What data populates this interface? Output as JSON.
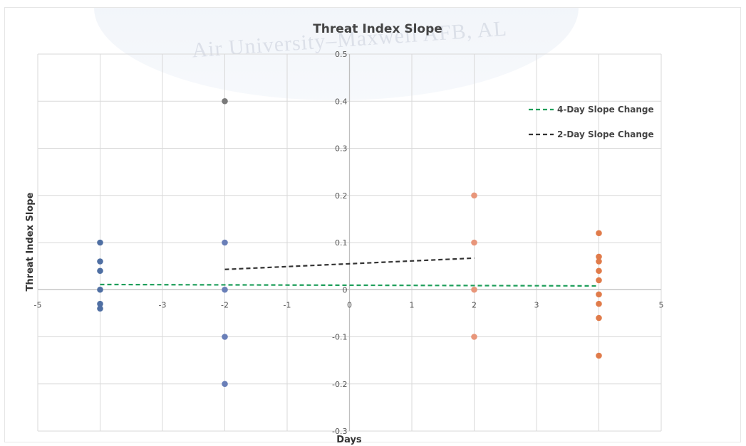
{
  "chart_data": {
    "type": "scatter",
    "title": "Threat Index Slope",
    "xlabel": "Days",
    "ylabel": "Threat Index Slope",
    "xlim": [
      -5,
      5
    ],
    "ylim": [
      -0.3,
      0.5
    ],
    "x_ticks": [
      -5,
      -4,
      -3,
      -2,
      -1,
      0,
      1,
      2,
      3,
      4,
      5
    ],
    "y_ticks": [
      -0.3,
      -0.2,
      -0.1,
      0,
      0.1,
      0.2,
      0.3,
      0.4,
      0.5
    ],
    "x_tick_labels": [
      "-5",
      "",
      "-3",
      "-2",
      "-1",
      "0",
      "1",
      "2",
      "3",
      "",
      "5"
    ],
    "y_tick_labels": [
      "-0.3",
      "-0.2",
      "-0.1",
      "0",
      "0.1",
      "0.2",
      "0.3",
      "0.4",
      "0.5"
    ],
    "grid": true,
    "legend_position": "top-right",
    "series": [
      {
        "color": "#4f6fa3",
        "points": [
          [
            -4,
            0.1
          ],
          [
            -4,
            0.06
          ],
          [
            -4,
            0.04
          ],
          [
            -4,
            0.0
          ],
          [
            -4,
            -0.03
          ],
          [
            -4,
            -0.04
          ]
        ]
      },
      {
        "color": "#6a7fb8",
        "points": [
          [
            -2,
            0.1
          ],
          [
            -2,
            0.0
          ],
          [
            -2,
            -0.1
          ],
          [
            -2,
            -0.2
          ]
        ]
      },
      {
        "color": "#7a7a7a",
        "points": [
          [
            -2,
            0.4
          ]
        ]
      },
      {
        "color": "#e8967a",
        "points": [
          [
            2,
            0.2
          ],
          [
            2,
            0.1
          ],
          [
            2,
            0.0
          ],
          [
            2,
            -0.1
          ]
        ]
      },
      {
        "color": "#e07b4a",
        "points": [
          [
            4,
            0.12
          ],
          [
            4,
            0.07
          ],
          [
            4,
            0.06
          ],
          [
            4,
            0.04
          ],
          [
            4,
            0.02
          ],
          [
            4,
            -0.01
          ],
          [
            4,
            -0.03
          ],
          [
            4,
            -0.06
          ],
          [
            4,
            -0.14
          ]
        ]
      }
    ],
    "lines": [
      {
        "name": "4-Day Slope Change",
        "color": "#1e9e5a",
        "dash": "dashed",
        "points": [
          [
            -4,
            0.011
          ],
          [
            4,
            0.008
          ]
        ]
      },
      {
        "name": "2-Day Slope Change",
        "color": "#333333",
        "dash": "dashed",
        "points": [
          [
            -2,
            0.043
          ],
          [
            2,
            0.067
          ]
        ]
      }
    ]
  }
}
